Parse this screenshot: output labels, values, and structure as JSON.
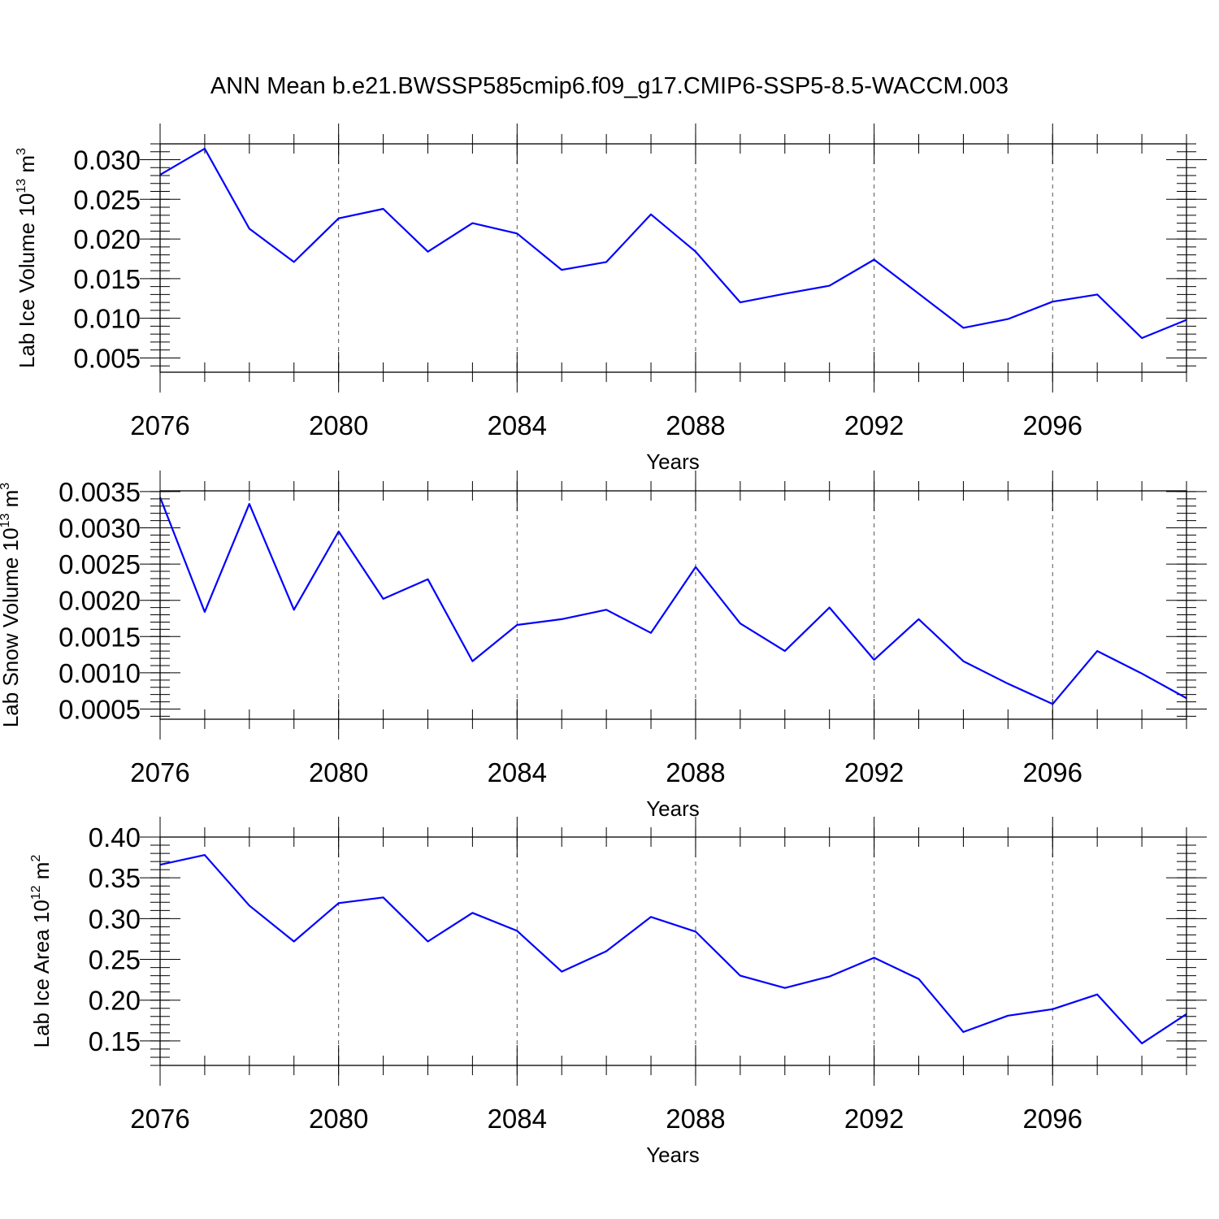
{
  "title": "ANN Mean b.e21.BWSSP585cmip6.f09_g17.CMIP6-SSP5-8.5-WACCM.003",
  "colors": {
    "line": "#0000ff",
    "axes": "#000000",
    "grid": "#555555"
  },
  "chart_data": [
    {
      "type": "line",
      "ylabel": "Lab Ice Volume 10",
      "ylabel_sup": "13",
      "ylabel_unit": " m",
      "ylabel_unit_sup": "3",
      "xlabel": "Years",
      "xlim": [
        2076,
        2099
      ],
      "ylim": [
        0.0032,
        0.032
      ],
      "xticks": [
        2076,
        2080,
        2084,
        2088,
        2092,
        2096
      ],
      "yticks": [
        0.005,
        0.01,
        0.015,
        0.02,
        0.025,
        0.03
      ],
      "ytick_labels": [
        "0.005",
        "0.010",
        "0.015",
        "0.020",
        "0.025",
        "0.030"
      ],
      "grid": "vertical dashed at major x ticks",
      "x": [
        2076,
        2077,
        2078,
        2079,
        2080,
        2081,
        2082,
        2083,
        2084,
        2085,
        2086,
        2087,
        2088,
        2089,
        2090,
        2091,
        2092,
        2093,
        2094,
        2095,
        2096,
        2097,
        2098,
        2099
      ],
      "y": [
        0.0281,
        0.0314,
        0.0213,
        0.0171,
        0.0226,
        0.0238,
        0.0184,
        0.022,
        0.0207,
        0.0161,
        0.0171,
        0.0231,
        0.0184,
        0.012,
        0.0131,
        0.0141,
        0.0174,
        0.0131,
        0.0088,
        0.0099,
        0.0121,
        0.013,
        0.0075,
        0.0098
      ]
    },
    {
      "type": "line",
      "ylabel": "Lab Snow Volume 10",
      "ylabel_sup": "13",
      "ylabel_unit": " m",
      "ylabel_unit_sup": "3",
      "xlabel": "Years",
      "xlim": [
        2076,
        2099
      ],
      "ylim": [
        0.00036,
        0.00351
      ],
      "xticks": [
        2076,
        2080,
        2084,
        2088,
        2092,
        2096
      ],
      "yticks": [
        0.0005,
        0.001,
        0.0015,
        0.002,
        0.0025,
        0.003,
        0.0035
      ],
      "ytick_labels": [
        "0.0005",
        "0.0010",
        "0.0015",
        "0.0020",
        "0.0025",
        "0.0030",
        "0.0035"
      ],
      "grid": "vertical dashed at major x ticks",
      "x": [
        2076,
        2077,
        2078,
        2079,
        2080,
        2081,
        2082,
        2083,
        2084,
        2085,
        2086,
        2087,
        2088,
        2089,
        2090,
        2091,
        2092,
        2093,
        2094,
        2095,
        2096,
        2097,
        2098,
        2099
      ],
      "y": [
        0.00342,
        0.00184,
        0.00333,
        0.00187,
        0.00295,
        0.00202,
        0.00229,
        0.00116,
        0.00166,
        0.00174,
        0.00187,
        0.00155,
        0.00246,
        0.00168,
        0.0013,
        0.0019,
        0.00118,
        0.00174,
        0.00116,
        0.00085,
        0.00057,
        0.0013,
        0.00099,
        0.00065
      ]
    },
    {
      "type": "line",
      "ylabel": "Lab Ice Area 10",
      "ylabel_sup": "12",
      "ylabel_unit": " m",
      "ylabel_unit_sup": "2",
      "xlabel": "Years",
      "xlim": [
        2076,
        2099
      ],
      "ylim": [
        0.12,
        0.4
      ],
      "xticks": [
        2076,
        2080,
        2084,
        2088,
        2092,
        2096
      ],
      "yticks": [
        0.15,
        0.2,
        0.25,
        0.3,
        0.35,
        0.4
      ],
      "ytick_labels": [
        "0.15",
        "0.20",
        "0.25",
        "0.30",
        "0.35",
        "0.40"
      ],
      "grid": "vertical dashed at major x ticks",
      "x": [
        2076,
        2077,
        2078,
        2079,
        2080,
        2081,
        2082,
        2083,
        2084,
        2085,
        2086,
        2087,
        2088,
        2089,
        2090,
        2091,
        2092,
        2093,
        2094,
        2095,
        2096,
        2097,
        2098,
        2099
      ],
      "y": [
        0.366,
        0.378,
        0.316,
        0.272,
        0.319,
        0.326,
        0.272,
        0.307,
        0.285,
        0.235,
        0.26,
        0.302,
        0.284,
        0.23,
        0.215,
        0.229,
        0.252,
        0.226,
        0.161,
        0.181,
        0.189,
        0.207,
        0.147,
        0.183
      ]
    }
  ]
}
